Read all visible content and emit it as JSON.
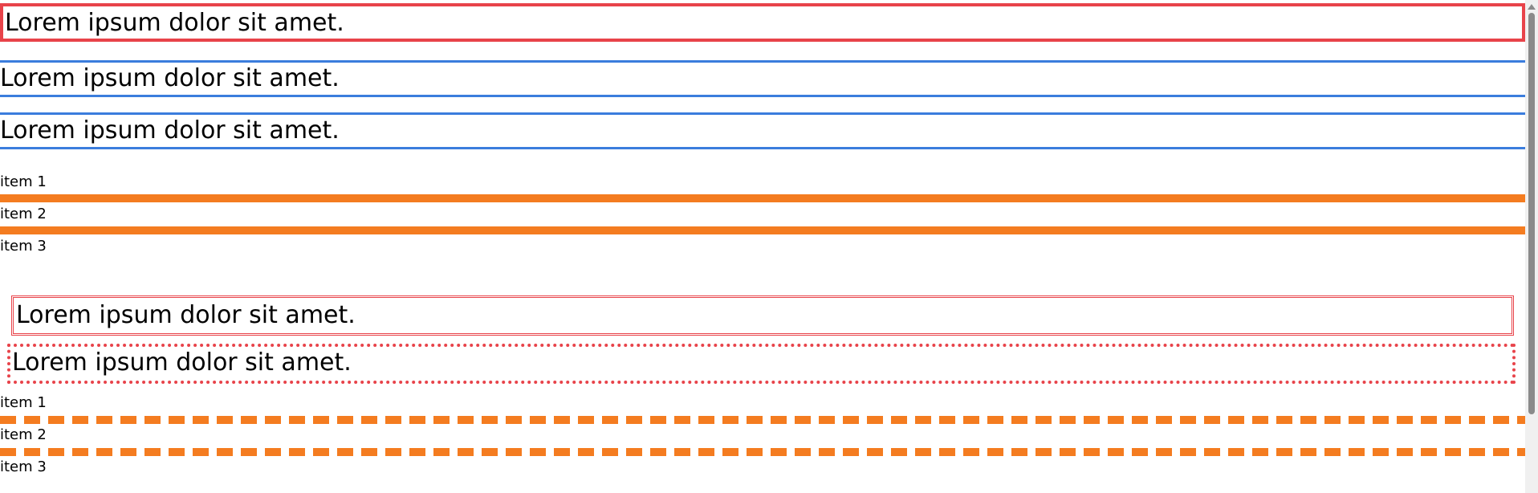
{
  "boxes": {
    "solid_red": "Lorem ipsum dolor sit amet.",
    "double_red": "Lorem ipsum dolor sit amet.",
    "dotted_red": "Lorem ipsum dolor sit amet."
  },
  "blue_section": [
    "Lorem ipsum dolor sit amet.",
    "Lorem ipsum dolor sit amet."
  ],
  "list_solid": [
    "item 1",
    "item 2",
    "item 3"
  ],
  "list_dashed": [
    "item 1",
    "item 2",
    "item 3"
  ],
  "colors": {
    "red_border": "#e8434a",
    "blue_border": "#3b7ddd",
    "orange_border": "#f47c20",
    "scrollbar_track": "#f0f0f0",
    "scrollbar_thumb": "#8a8a8a"
  }
}
